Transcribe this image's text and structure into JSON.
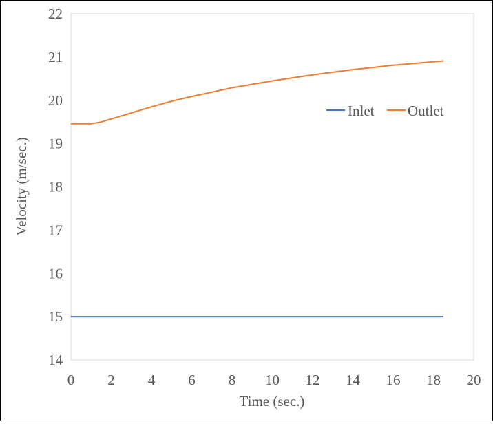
{
  "chart_data": {
    "type": "line",
    "title": "",
    "xlabel": "Time (sec.)",
    "ylabel": "Velocity (m/sec.)",
    "xlim": [
      0,
      20
    ],
    "ylim": [
      14,
      22
    ],
    "xticks": [
      0,
      2,
      4,
      6,
      8,
      10,
      12,
      14,
      16,
      18,
      20
    ],
    "yticks": [
      14,
      15,
      16,
      17,
      18,
      19,
      20,
      21,
      22
    ],
    "grid": false,
    "legend_position": "right, inside plot, upper middle",
    "series": [
      {
        "name": "Inlet",
        "color": "#4472C4",
        "x": [
          0,
          18.5
        ],
        "y": [
          15.0,
          15.0
        ]
      },
      {
        "name": "Outlet",
        "color": "#ED7D31",
        "x": [
          0,
          0.5,
          1.0,
          1.5,
          2,
          3,
          4,
          5,
          6,
          7,
          8,
          9,
          10,
          11,
          12,
          13,
          14,
          15,
          16,
          17,
          18,
          18.5
        ],
        "y": [
          19.46,
          19.46,
          19.46,
          19.5,
          19.57,
          19.71,
          19.85,
          19.98,
          20.09,
          20.19,
          20.29,
          20.37,
          20.45,
          20.52,
          20.59,
          20.65,
          20.71,
          20.76,
          20.81,
          20.85,
          20.89,
          20.91
        ]
      }
    ]
  }
}
